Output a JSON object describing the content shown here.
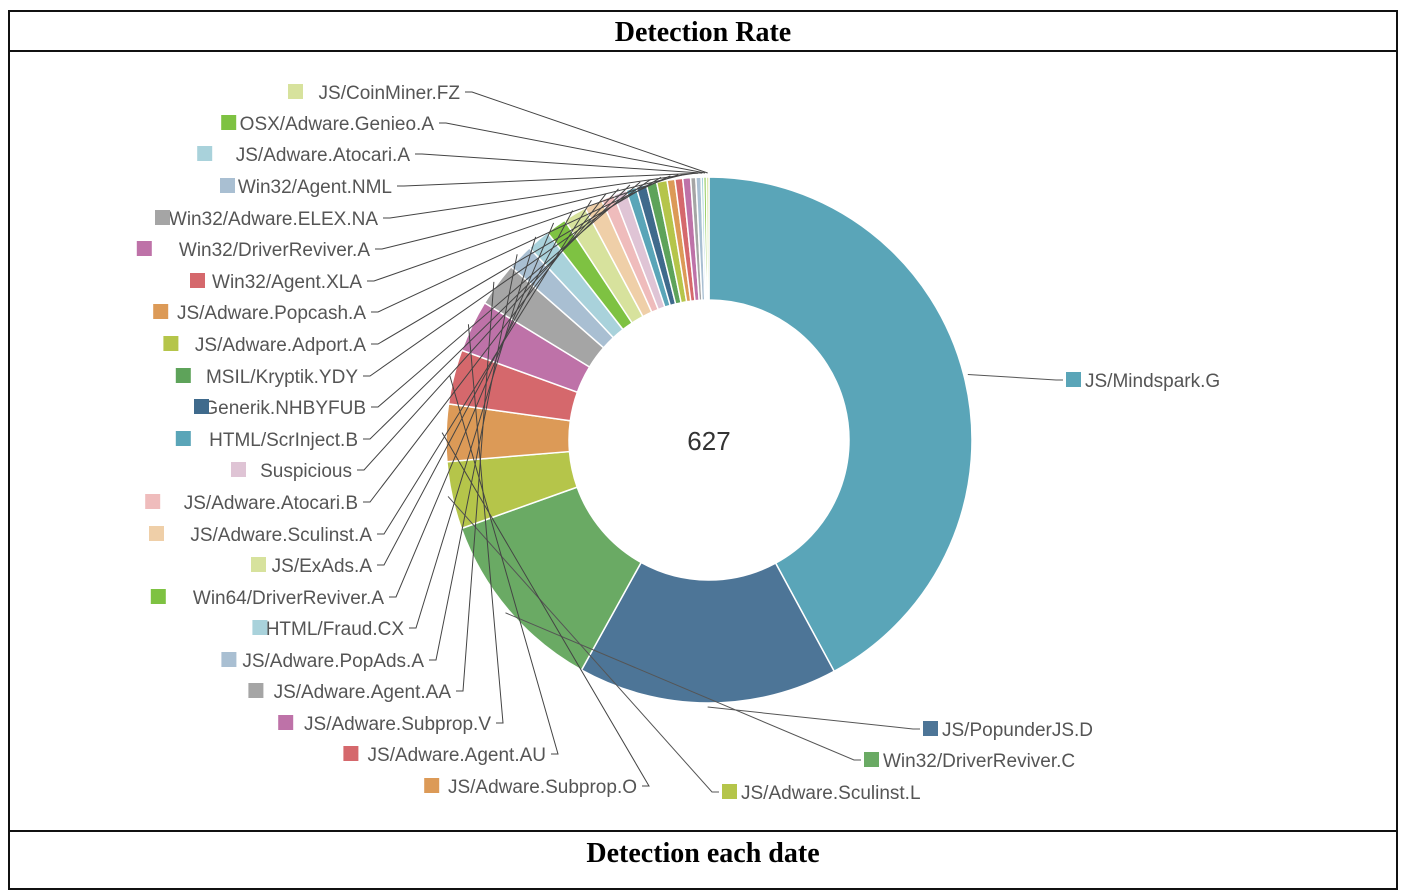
{
  "header": {
    "title": "Detection Rate"
  },
  "footer": {
    "title": "Detection each date"
  },
  "chart_data": {
    "type": "pie",
    "donut": true,
    "center_label": "627",
    "slices": [
      {
        "name": "JS/Mindspark.G",
        "value": 264,
        "color": "#5aa5b8",
        "side": "right"
      },
      {
        "name": "JS/PopunderJS.D",
        "value": 100,
        "color": "#4d7597",
        "side": "right"
      },
      {
        "name": "Win32/DriverReviver.C",
        "value": 72,
        "color": "#6aaa64",
        "side": "right"
      },
      {
        "name": "JS/Adware.Sculinst.L",
        "value": 26,
        "color": "#b5c54a",
        "side": "right"
      },
      {
        "name": "JS/Adware.Subprop.O",
        "value": 22,
        "color": "#dc9a57",
        "side": "left"
      },
      {
        "name": "JS/Adware.Agent.AU",
        "value": 21,
        "color": "#d5686c",
        "side": "left"
      },
      {
        "name": "JS/Adware.Subprop.V",
        "value": 20,
        "color": "#be72a8",
        "side": "left"
      },
      {
        "name": "JS/Adware.Agent.AA",
        "value": 17,
        "color": "#a5a5a5",
        "side": "left"
      },
      {
        "name": "JS/Adware.PopAds.A",
        "value": 10,
        "color": "#a9bfd2",
        "side": "left"
      },
      {
        "name": "HTML/Fraud.CX",
        "value": 9,
        "color": "#a9d2db",
        "side": "left"
      },
      {
        "name": "Win64/DriverReviver.A",
        "value": 8,
        "color": "#7ec242",
        "side": "left"
      },
      {
        "name": "JS/ExAds.A",
        "value": 9,
        "color": "#d7e29d",
        "side": "left"
      },
      {
        "name": "JS/Adware.Sculinst.A",
        "value": 7,
        "color": "#efcfa8",
        "side": "left"
      },
      {
        "name": "JS/Adware.Atocari.B",
        "value": 5,
        "color": "#efbcbc",
        "side": "left"
      },
      {
        "name": "Suspicious",
        "value": 5,
        "color": "#dfc4d5",
        "side": "left"
      },
      {
        "name": "HTML/ScrInject.B",
        "value": 4,
        "color": "#5aa5b8",
        "side": "left"
      },
      {
        "name": "Generik.NHBYFUB",
        "value": 4,
        "color": "#3f6a8c",
        "side": "left"
      },
      {
        "name": "MSIL/Kryptik.YDY",
        "value": 4,
        "color": "#5ea35a",
        "side": "left"
      },
      {
        "name": "JS/Adware.Adport.A",
        "value": 4,
        "color": "#b5c54a",
        "side": "left"
      },
      {
        "name": "JS/Adware.Popcash.A",
        "value": 3,
        "color": "#dc9a57",
        "side": "left"
      },
      {
        "name": "Win32/Agent.XLA",
        "value": 3,
        "color": "#d5686c",
        "side": "left"
      },
      {
        "name": "Win32/DriverReviver.A",
        "value": 3,
        "color": "#be72a8",
        "side": "left"
      },
      {
        "name": "Win32/Adware.ELEX.NA",
        "value": 2,
        "color": "#a5a5a5",
        "side": "left"
      },
      {
        "name": "Win32/Agent.NML",
        "value": 2,
        "color": "#a9bfd2",
        "side": "left"
      },
      {
        "name": "JS/Adware.Atocari.A",
        "value": 1,
        "color": "#a9d2db",
        "side": "left"
      },
      {
        "name": "OSX/Adware.Genieo.A",
        "value": 1,
        "color": "#7ec242",
        "side": "left"
      },
      {
        "name": "JS/CoinMiner.FZ",
        "value": 1,
        "color": "#d7e29d",
        "side": "left"
      }
    ]
  }
}
